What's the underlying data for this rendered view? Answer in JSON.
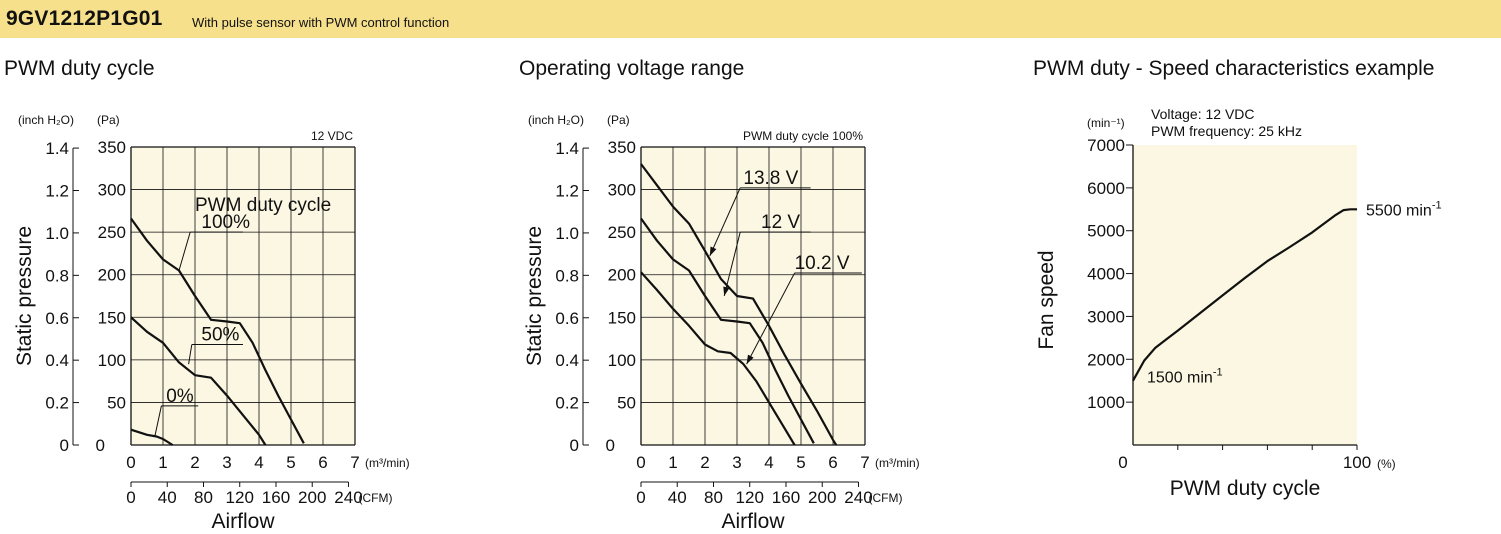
{
  "header": {
    "model": "9GV1212P1G01",
    "subtitle": "With pulse sensor with PWM control function",
    "band_color": "#f7e08c"
  },
  "colors": {
    "plot_bg": "#fbf7e2",
    "line": "#111111",
    "grid": "#111111"
  },
  "chart_data": [
    {
      "type": "line",
      "title": "PWM duty cycle",
      "xlabel": "Airflow",
      "ylabel": "Static pressure",
      "corner_label": "12 VDC",
      "x_unit_primary": "(m³/min)",
      "x_unit_secondary": "(CFM)",
      "y_unit_left": "(inch H₂O)",
      "y_unit_right": "(Pa)",
      "xlim": [
        0,
        7
      ],
      "ylim": [
        0,
        350
      ],
      "x_ticks": [
        "0",
        "1",
        "2",
        "3",
        "4",
        "5",
        "6",
        "7"
      ],
      "x_ticks_cfm": [
        "0",
        "40",
        "80",
        "120",
        "160",
        "200",
        "240"
      ],
      "y_ticks_pa": [
        "50",
        "100",
        "150",
        "200",
        "250",
        "300",
        "350"
      ],
      "y_ticks_inch": [
        "0",
        "0.2",
        "0.4",
        "0.6",
        "0.8",
        "1.0",
        "1.2",
        "1.4"
      ],
      "zero_label": "0",
      "legend_title": "PWM duty cycle",
      "grid": true,
      "series": [
        {
          "name": "100%",
          "x": [
            0,
            0.5,
            1,
            1.5,
            2,
            2.5,
            3,
            3.4,
            3.8,
            4.2,
            4.6,
            5,
            5.4
          ],
          "y": [
            266,
            240,
            218,
            205,
            175,
            147,
            145,
            143,
            120,
            88,
            58,
            30,
            2
          ]
        },
        {
          "name": "50%",
          "x": [
            0,
            0.5,
            1,
            1.5,
            2,
            2.5,
            3,
            3.5,
            4,
            4.2
          ],
          "y": [
            150,
            133,
            120,
            97,
            82,
            79,
            58,
            35,
            12,
            0
          ]
        },
        {
          "name": "0%",
          "x": [
            0,
            0.5,
            0.8,
            1,
            1.3
          ],
          "y": [
            18,
            12,
            10,
            7,
            0
          ]
        }
      ]
    },
    {
      "type": "line",
      "title": "Operating voltage range",
      "xlabel": "Airflow",
      "ylabel": "Static pressure",
      "corner_label": "PWM duty cycle 100%",
      "x_unit_primary": "(m³/min)",
      "x_unit_secondary": "(CFM)",
      "y_unit_left": "(inch H₂O)",
      "y_unit_right": "(Pa)",
      "xlim": [
        0,
        7
      ],
      "ylim": [
        0,
        350
      ],
      "x_ticks": [
        "0",
        "1",
        "2",
        "3",
        "4",
        "5",
        "6",
        "7"
      ],
      "x_ticks_cfm": [
        "0",
        "40",
        "80",
        "120",
        "160",
        "200",
        "240"
      ],
      "y_ticks_pa": [
        "50",
        "100",
        "150",
        "200",
        "250",
        "300",
        "350"
      ],
      "y_ticks_inch": [
        "0",
        "0.2",
        "0.4",
        "0.6",
        "0.8",
        "1.0",
        "1.2",
        "1.4"
      ],
      "zero_label": "0",
      "grid": true,
      "series": [
        {
          "name": "13.8 V",
          "x": [
            0,
            0.5,
            1,
            1.5,
            2,
            2.5,
            3,
            3.5,
            4,
            4.5,
            5,
            5.5,
            6,
            6.1
          ],
          "y": [
            330,
            305,
            280,
            260,
            228,
            195,
            175,
            172,
            140,
            105,
            72,
            40,
            6,
            0
          ]
        },
        {
          "name": "12 V",
          "x": [
            0,
            0.5,
            1,
            1.5,
            2,
            2.5,
            3,
            3.4,
            3.8,
            4.2,
            4.6,
            5,
            5.4
          ],
          "y": [
            266,
            240,
            218,
            205,
            175,
            147,
            145,
            143,
            120,
            88,
            58,
            30,
            2
          ]
        },
        {
          "name": "10.2 V",
          "x": [
            0,
            0.5,
            1,
            1.5,
            2,
            2.4,
            2.8,
            3.2,
            3.6,
            4,
            4.4,
            4.8
          ],
          "y": [
            203,
            182,
            160,
            140,
            118,
            110,
            108,
            95,
            75,
            50,
            25,
            0
          ]
        }
      ]
    },
    {
      "type": "line",
      "title": "PWM duty - Speed characteristics example",
      "xlabel": "PWM duty cycle",
      "ylabel": "Fan speed",
      "x_unit": "(%)",
      "y_unit": "(min⁻¹)",
      "note_lines": [
        "Voltage: 12 VDC",
        "PWM frequency: 25 kHz"
      ],
      "xlim": [
        0,
        100
      ],
      "ylim": [
        0,
        7000
      ],
      "x_tick_labels": {
        "min": "0",
        "max": "100"
      },
      "y_ticks": [
        "1000",
        "2000",
        "3000",
        "4000",
        "5000",
        "6000",
        "7000"
      ],
      "grid": false,
      "annotations": [
        {
          "text": "5500 min",
          "superscript": "-1"
        },
        {
          "text": "1500 min",
          "superscript": "-1"
        }
      ],
      "series": [
        {
          "x": [
            0,
            5,
            10,
            15,
            20,
            30,
            40,
            50,
            60,
            70,
            80,
            90,
            94,
            97,
            100
          ],
          "y": [
            1500,
            1970,
            2270,
            2470,
            2670,
            3080,
            3490,
            3900,
            4290,
            4620,
            4960,
            5350,
            5480,
            5500,
            5500
          ]
        }
      ]
    }
  ]
}
